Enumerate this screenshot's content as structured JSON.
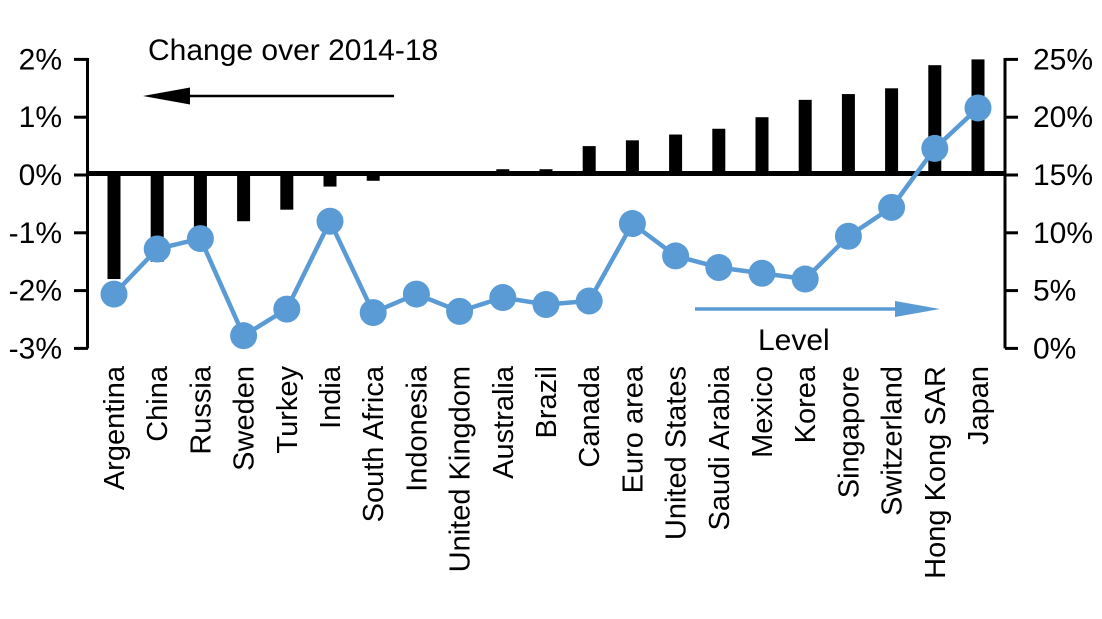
{
  "annotations": {
    "change_label": "Change over 2014-18",
    "level_label": "Level"
  },
  "colors": {
    "bar": "#000000",
    "line": "#5B9BD5",
    "axis": "#000000",
    "text": "#000000",
    "background": "#FFFFFF"
  },
  "chart_data": {
    "type": "combo",
    "categories": [
      "Argentina",
      "China",
      "Russia",
      "Sweden",
      "Turkey",
      "India",
      "South Africa",
      "Indonesia",
      "United Kingdom",
      "Australia",
      "Brazil",
      "Canada",
      "Euro area",
      "United States",
      "Saudi Arabia",
      "Mexico",
      "Korea",
      "Singapore",
      "Switzerland",
      "Hong Kong SAR",
      "Japan"
    ],
    "series": [
      {
        "name": "Change over 2014-18",
        "type": "bar",
        "axis": "left",
        "color": "#000000",
        "values": [
          -1.8,
          -1.5,
          -1.3,
          -0.8,
          -0.6,
          -0.2,
          -0.1,
          0.0,
          0.0,
          0.1,
          0.1,
          0.5,
          0.6,
          0.7,
          0.8,
          1.0,
          1.3,
          1.4,
          1.5,
          1.9,
          2.0
        ]
      },
      {
        "name": "Level",
        "type": "line",
        "axis": "right",
        "color": "#5B9BD5",
        "values": [
          4.7,
          8.6,
          9.5,
          1.1,
          3.4,
          11.0,
          3.1,
          4.7,
          3.2,
          4.4,
          3.8,
          4.1,
          10.8,
          8.0,
          7.0,
          6.5,
          6.0,
          9.7,
          12.2,
          17.3,
          20.8
        ]
      }
    ],
    "left_axis": {
      "tick_labels": [
        "2%",
        "1%",
        "0%",
        "-1%",
        "-2%",
        "-3%"
      ],
      "tick_values": [
        2,
        1,
        0,
        -1,
        -2,
        -3
      ],
      "range": [
        -3,
        2
      ]
    },
    "right_axis": {
      "tick_labels": [
        "25%",
        "20%",
        "15%",
        "10%",
        "5%",
        "0%"
      ],
      "tick_values": [
        25,
        20,
        15,
        10,
        5,
        0
      ],
      "range": [
        0,
        25
      ]
    },
    "grid": false,
    "legend_position": "in-plot arrow annotations"
  }
}
